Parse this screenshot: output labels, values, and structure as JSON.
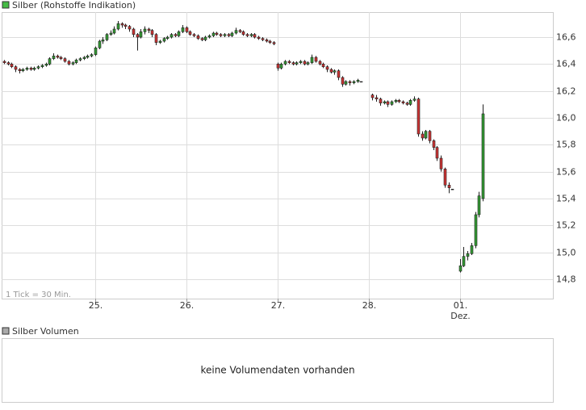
{
  "chart_data": {
    "type": "candlestick",
    "title": "Silber (Rohstoffe Indikation)",
    "tick_note": "1 Tick = 30 Min.",
    "month_label": "Dez.",
    "up_color": "#339933",
    "down_color": "#cc3333",
    "grid": true,
    "xlim": [
      -24.6,
      120.5
    ],
    "ylim": [
      14.656,
      16.786
    ],
    "xticks": [
      {
        "value": 0,
        "label": "25."
      },
      {
        "value": 24,
        "label": "26."
      },
      {
        "value": 48,
        "label": "27."
      },
      {
        "value": 72,
        "label": "28."
      },
      {
        "value": 96,
        "label": "01."
      }
    ],
    "yticks": [
      {
        "value": 14.8,
        "label": "14,8"
      },
      {
        "value": 15.0,
        "label": "15,0"
      },
      {
        "value": 15.2,
        "label": "15,2"
      },
      {
        "value": 15.4,
        "label": "15,4"
      },
      {
        "value": 15.6,
        "label": "15,6"
      },
      {
        "value": 15.8,
        "label": "15,8"
      },
      {
        "value": 16.0,
        "label": "16,0"
      },
      {
        "value": 16.2,
        "label": "16,2"
      },
      {
        "value": 16.4,
        "label": "16,4"
      },
      {
        "value": 16.6,
        "label": "16,6"
      }
    ],
    "x": [
      -24,
      -23,
      -22,
      -21,
      -20,
      -19,
      -18,
      -17,
      -16,
      -15,
      -14,
      -13,
      -12,
      -11,
      -10,
      -9,
      -8,
      -7,
      -6,
      -5,
      -4,
      -3,
      -2,
      -1,
      0,
      1,
      2,
      3,
      4,
      5,
      6,
      7,
      8,
      9,
      10,
      11,
      12,
      13,
      14,
      15,
      16,
      17,
      18,
      19,
      20,
      21,
      22,
      23,
      24,
      25,
      26,
      27,
      28,
      29,
      30,
      31,
      32,
      33,
      34,
      35,
      36,
      37,
      38,
      39,
      40,
      41,
      42,
      43,
      44,
      45,
      46,
      47,
      48,
      49,
      50,
      51,
      52,
      53,
      54,
      55,
      56,
      57,
      58,
      59,
      60,
      61,
      62,
      63,
      64,
      65,
      66,
      67,
      68,
      69,
      70,
      73,
      74,
      75,
      76,
      77,
      78,
      79,
      80,
      81,
      82,
      83,
      84,
      85,
      86,
      87,
      88,
      89,
      90,
      91,
      92,
      93,
      94,
      96,
      97,
      98,
      99,
      100,
      101,
      102
    ],
    "open": [
      16.42,
      16.41,
      16.4,
      16.38,
      16.36,
      16.35,
      16.36,
      16.37,
      16.36,
      16.37,
      16.38,
      16.39,
      16.4,
      16.44,
      16.46,
      16.45,
      16.44,
      16.42,
      16.4,
      16.41,
      16.43,
      16.44,
      16.45,
      16.46,
      16.47,
      16.52,
      16.57,
      16.58,
      16.62,
      16.63,
      16.66,
      16.7,
      16.69,
      16.68,
      16.66,
      16.62,
      16.6,
      16.64,
      16.66,
      16.65,
      16.62,
      16.56,
      16.57,
      16.59,
      16.6,
      16.62,
      16.61,
      16.64,
      16.67,
      16.64,
      16.62,
      16.61,
      16.59,
      16.58,
      16.6,
      16.61,
      16.63,
      16.62,
      16.61,
      16.62,
      16.61,
      16.63,
      16.65,
      16.64,
      16.62,
      16.61,
      16.62,
      16.6,
      16.59,
      16.58,
      16.57,
      16.56,
      16.4,
      16.37,
      16.4,
      16.42,
      16.41,
      16.4,
      16.41,
      16.42,
      16.4,
      16.41,
      16.45,
      16.42,
      16.4,
      16.38,
      16.36,
      16.34,
      16.35,
      16.3,
      16.25,
      16.27,
      16.26,
      16.27,
      16.27,
      16.17,
      16.15,
      16.14,
      16.11,
      16.12,
      16.1,
      16.12,
      16.13,
      16.12,
      16.11,
      16.1,
      16.13,
      16.14,
      15.88,
      15.85,
      15.9,
      15.83,
      15.78,
      15.7,
      15.62,
      15.5,
      15.47,
      14.86,
      14.9,
      14.97,
      14.99,
      15.05,
      15.28,
      15.4
    ],
    "high": [
      16.43,
      16.42,
      16.41,
      16.39,
      16.37,
      16.37,
      16.38,
      16.38,
      16.38,
      16.39,
      16.4,
      16.41,
      16.45,
      16.48,
      16.47,
      16.46,
      16.45,
      16.43,
      16.42,
      16.44,
      16.45,
      16.46,
      16.47,
      16.48,
      16.53,
      16.58,
      16.6,
      16.63,
      16.65,
      16.68,
      16.72,
      16.71,
      16.7,
      16.69,
      16.67,
      16.63,
      16.66,
      16.68,
      16.67,
      16.66,
      16.63,
      16.58,
      16.6,
      16.61,
      16.63,
      16.63,
      16.65,
      16.69,
      16.68,
      16.65,
      16.63,
      16.62,
      16.6,
      16.61,
      16.62,
      16.64,
      16.64,
      16.63,
      16.63,
      16.63,
      16.64,
      16.67,
      16.66,
      16.65,
      16.63,
      16.63,
      16.63,
      16.61,
      16.6,
      16.59,
      16.58,
      16.57,
      16.41,
      16.41,
      16.43,
      16.43,
      16.42,
      16.42,
      16.43,
      16.43,
      16.42,
      16.47,
      16.46,
      16.43,
      16.41,
      16.39,
      16.37,
      16.36,
      16.36,
      16.31,
      16.28,
      16.28,
      16.28,
      16.29,
      16.27,
      16.18,
      16.17,
      16.15,
      16.13,
      16.13,
      16.13,
      16.14,
      16.14,
      16.13,
      16.12,
      16.14,
      16.16,
      16.15,
      15.9,
      15.91,
      15.91,
      15.84,
      15.79,
      15.72,
      15.63,
      15.52,
      15.47,
      14.95,
      15.04,
      15.01,
      15.07,
      15.3,
      15.45,
      16.1
    ],
    "low": [
      16.4,
      16.39,
      16.37,
      16.34,
      16.33,
      16.34,
      16.35,
      16.35,
      16.35,
      16.36,
      16.37,
      16.38,
      16.39,
      16.43,
      16.44,
      16.43,
      16.41,
      16.39,
      16.39,
      16.4,
      16.42,
      16.43,
      16.44,
      16.45,
      16.46,
      16.51,
      16.55,
      16.57,
      16.61,
      16.62,
      16.65,
      16.67,
      16.66,
      16.64,
      16.6,
      16.5,
      16.59,
      16.62,
      16.63,
      16.6,
      16.54,
      16.55,
      16.56,
      16.58,
      16.59,
      16.6,
      16.6,
      16.63,
      16.63,
      16.61,
      16.6,
      16.58,
      16.57,
      16.57,
      16.59,
      16.6,
      16.61,
      16.6,
      16.6,
      16.6,
      16.6,
      16.62,
      16.63,
      16.61,
      16.6,
      16.6,
      16.59,
      16.58,
      16.57,
      16.56,
      16.55,
      16.54,
      16.35,
      16.36,
      16.39,
      16.4,
      16.39,
      16.39,
      16.4,
      16.39,
      16.39,
      16.4,
      16.41,
      16.39,
      16.37,
      16.34,
      16.33,
      16.32,
      16.28,
      16.23,
      16.24,
      16.24,
      16.25,
      16.26,
      16.27,
      16.13,
      16.12,
      16.09,
      16.1,
      16.08,
      16.09,
      16.11,
      16.11,
      16.1,
      16.09,
      16.09,
      16.12,
      15.86,
      15.83,
      15.84,
      15.81,
      15.76,
      15.68,
      15.6,
      15.48,
      15.44,
      15.47,
      14.85,
      14.89,
      14.94,
      14.98,
      15.03,
      15.26,
      15.38
    ],
    "close": [
      16.41,
      16.4,
      16.38,
      16.36,
      16.35,
      16.36,
      16.37,
      16.36,
      16.37,
      16.38,
      16.39,
      16.4,
      16.44,
      16.46,
      16.45,
      16.44,
      16.42,
      16.4,
      16.41,
      16.43,
      16.44,
      16.45,
      16.46,
      16.47,
      16.52,
      16.57,
      16.58,
      16.62,
      16.63,
      16.66,
      16.7,
      16.69,
      16.68,
      16.66,
      16.62,
      16.6,
      16.64,
      16.66,
      16.65,
      16.62,
      16.56,
      16.57,
      16.59,
      16.6,
      16.62,
      16.61,
      16.64,
      16.67,
      16.64,
      16.62,
      16.61,
      16.59,
      16.58,
      16.6,
      16.61,
      16.63,
      16.62,
      16.61,
      16.62,
      16.61,
      16.63,
      16.65,
      16.64,
      16.62,
      16.61,
      16.62,
      16.6,
      16.59,
      16.58,
      16.57,
      16.56,
      16.55,
      16.37,
      16.4,
      16.42,
      16.41,
      16.4,
      16.41,
      16.42,
      16.4,
      16.41,
      16.45,
      16.42,
      16.4,
      16.38,
      16.36,
      16.34,
      16.35,
      16.3,
      16.25,
      16.27,
      16.26,
      16.27,
      16.28,
      16.27,
      16.15,
      16.14,
      16.11,
      16.12,
      16.1,
      16.12,
      16.13,
      16.12,
      16.11,
      16.1,
      16.13,
      16.14,
      15.88,
      15.85,
      15.9,
      15.83,
      15.78,
      15.7,
      15.62,
      15.5,
      15.48,
      15.47,
      14.9,
      14.97,
      14.99,
      15.05,
      15.28,
      15.42,
      16.03
    ]
  },
  "volume_panel": {
    "title": "Silber Volumen",
    "message": "keine Volumendaten vorhanden"
  }
}
